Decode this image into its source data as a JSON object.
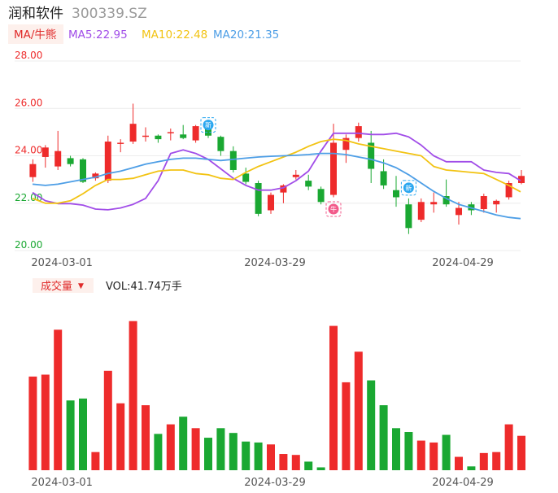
{
  "header": {
    "stock_name": "润和软件",
    "stock_code": "300339.SZ",
    "ma_tab_label": "MA/牛熊",
    "ma5_label": "MA5:22.95",
    "ma10_label": "MA10:22.48",
    "ma20_label": "MA20:21.35",
    "volume_tab_label": "成交量",
    "volume_tab_arrow": "▼",
    "volume_value_label": "VOL:41.74万手"
  },
  "colors": {
    "up": "#ee2b2b",
    "down": "#1aa832",
    "ma5": "#a14de8",
    "ma10": "#f2c313",
    "ma20": "#4d9ee6",
    "grid": "#ececec",
    "axis_text": "#555555",
    "title": "#222222",
    "code": "#9a9a9a",
    "tab_bg": "#fdf0ec",
    "tab_text": "#e02a2a",
    "badge_blue": "#2aa7f0",
    "badge_pink": "#f25a8a"
  },
  "chart_data": [
    {
      "type": "candlestick",
      "title": "润和软件 300339.SZ",
      "yticks": [
        "28.00",
        "26.00",
        "24.00",
        "22.00",
        "20.00"
      ],
      "ylim": [
        20,
        28
      ],
      "grid": true,
      "xtick_labels": [
        "2024-03-01",
        "2024-03-29",
        "2024-04-29"
      ],
      "xtick_indices": [
        2,
        19,
        34
      ],
      "candles": [
        {
          "o": 23.1,
          "c": 23.65,
          "h": 23.85,
          "l": 22.9
        },
        {
          "o": 23.95,
          "c": 24.35,
          "h": 24.45,
          "l": 23.5
        },
        {
          "o": 23.55,
          "c": 24.2,
          "h": 25.05,
          "l": 23.4
        },
        {
          "o": 23.9,
          "c": 23.65,
          "h": 24.0,
          "l": 23.55
        },
        {
          "o": 23.85,
          "c": 22.9,
          "h": 23.9,
          "l": 22.85
        },
        {
          "o": 23.05,
          "c": 23.25,
          "h": 23.3,
          "l": 22.95
        },
        {
          "o": 22.95,
          "c": 24.6,
          "h": 24.85,
          "l": 22.85
        },
        {
          "o": 24.5,
          "c": 24.55,
          "h": 24.7,
          "l": 24.15
        },
        {
          "o": 24.6,
          "c": 25.35,
          "h": 26.2,
          "l": 24.5
        },
        {
          "o": 24.8,
          "c": 24.85,
          "h": 25.2,
          "l": 24.6
        },
        {
          "o": 24.85,
          "c": 24.7,
          "h": 24.9,
          "l": 24.55
        },
        {
          "o": 24.95,
          "c": 25.0,
          "h": 25.15,
          "l": 24.65
        },
        {
          "o": 24.9,
          "c": 24.75,
          "h": 25.3,
          "l": 24.7
        },
        {
          "o": 24.65,
          "c": 25.25,
          "h": 25.3,
          "l": 24.55
        },
        {
          "o": 25.3,
          "c": 24.85,
          "h": 25.4,
          "l": 24.75
        },
        {
          "o": 24.8,
          "c": 24.2,
          "h": 24.85,
          "l": 24.0
        },
        {
          "o": 24.2,
          "c": 23.4,
          "h": 24.4,
          "l": 23.3
        },
        {
          "o": 23.25,
          "c": 22.9,
          "h": 23.5,
          "l": 22.8
        },
        {
          "o": 22.85,
          "c": 21.55,
          "h": 22.95,
          "l": 21.45
        },
        {
          "o": 21.7,
          "c": 22.35,
          "h": 22.45,
          "l": 21.55
        },
        {
          "o": 22.45,
          "c": 22.75,
          "h": 22.8,
          "l": 22.0
        },
        {
          "o": 23.1,
          "c": 23.2,
          "h": 23.4,
          "l": 23.0
        },
        {
          "o": 22.95,
          "c": 22.7,
          "h": 23.2,
          "l": 22.55
        },
        {
          "o": 22.6,
          "c": 22.05,
          "h": 22.7,
          "l": 21.95
        },
        {
          "o": 22.35,
          "c": 24.55,
          "h": 25.35,
          "l": 22.25
        },
        {
          "o": 24.25,
          "c": 24.75,
          "h": 24.9,
          "l": 23.7
        },
        {
          "o": 24.75,
          "c": 25.25,
          "h": 25.4,
          "l": 24.6
        },
        {
          "o": 24.55,
          "c": 23.45,
          "h": 25.05,
          "l": 22.85
        },
        {
          "o": 23.35,
          "c": 22.75,
          "h": 23.85,
          "l": 22.6
        },
        {
          "o": 22.55,
          "c": 22.25,
          "h": 23.15,
          "l": 21.85
        },
        {
          "o": 21.95,
          "c": 20.95,
          "h": 22.2,
          "l": 20.7
        },
        {
          "o": 21.3,
          "c": 22.05,
          "h": 22.2,
          "l": 21.2
        },
        {
          "o": 21.95,
          "c": 22.05,
          "h": 22.45,
          "l": 21.6
        },
        {
          "o": 22.3,
          "c": 21.95,
          "h": 23.0,
          "l": 21.85
        },
        {
          "o": 21.5,
          "c": 21.8,
          "h": 22.05,
          "l": 21.1
        },
        {
          "o": 21.95,
          "c": 21.7,
          "h": 22.05,
          "l": 21.5
        },
        {
          "o": 21.75,
          "c": 22.3,
          "h": 22.4,
          "l": 21.6
        },
        {
          "o": 21.95,
          "c": 22.1,
          "h": 22.15,
          "l": 21.6
        },
        {
          "o": 22.25,
          "c": 22.85,
          "h": 22.95,
          "l": 22.15
        },
        {
          "o": 22.85,
          "c": 23.15,
          "h": 23.4,
          "l": 22.8
        }
      ],
      "series": [
        {
          "name": "MA5",
          "values": [
            22.45,
            22.1,
            21.98,
            21.98,
            21.92,
            21.75,
            21.72,
            21.8,
            21.95,
            22.2,
            22.95,
            24.1,
            24.25,
            24.1,
            23.85,
            23.45,
            23.05,
            22.75,
            22.55,
            22.55,
            22.65,
            22.95,
            23.35,
            24.2,
            24.95,
            24.95,
            24.95,
            24.9,
            24.9,
            24.95,
            24.8,
            24.45,
            24.0,
            23.75,
            23.75,
            23.75,
            23.4,
            23.3,
            23.25,
            22.95
          ]
        },
        {
          "name": "MA10",
          "values": [
            22.2,
            22.0,
            22.0,
            22.1,
            22.4,
            22.75,
            23.0,
            23.0,
            23.05,
            23.2,
            23.35,
            23.4,
            23.4,
            23.25,
            23.2,
            23.05,
            23.0,
            23.3,
            23.55,
            23.75,
            23.95,
            24.15,
            24.4,
            24.6,
            24.7,
            24.65,
            24.5,
            24.4,
            24.3,
            24.2,
            24.1,
            24.0,
            23.55,
            23.4,
            23.35,
            23.3,
            23.25,
            23.0,
            22.75,
            22.48
          ]
        },
        {
          "name": "MA20",
          "values": [
            22.8,
            22.75,
            22.8,
            22.9,
            23.0,
            23.1,
            23.25,
            23.35,
            23.5,
            23.65,
            23.75,
            23.85,
            23.9,
            23.9,
            23.85,
            23.8,
            23.85,
            23.9,
            23.95,
            23.98,
            24.0,
            24.02,
            24.05,
            24.1,
            24.1,
            24.05,
            23.95,
            23.85,
            23.7,
            23.5,
            23.2,
            22.85,
            22.5,
            22.2,
            21.95,
            21.8,
            21.65,
            21.5,
            21.4,
            21.35
          ]
        }
      ],
      "annotations": [
        {
          "type": "badge",
          "label": "新",
          "index": 14,
          "price": 25.3,
          "color": "blue"
        },
        {
          "type": "badge",
          "label": "牛",
          "index": 24,
          "price": 21.75,
          "color": "pink"
        },
        {
          "type": "badge",
          "label": "新",
          "index": 30,
          "price": 22.65,
          "color": "blue"
        }
      ]
    },
    {
      "type": "bar",
      "title": "成交量",
      "xtick_labels": [
        "2024-03-01",
        "2024-03-29",
        "2024-04-29"
      ],
      "values": [
        98,
        100,
        147,
        73,
        75,
        19,
        104,
        70,
        156,
        68,
        38,
        48,
        56,
        44,
        34,
        44,
        39,
        30,
        29,
        27,
        17,
        16,
        9,
        3,
        151,
        92,
        124,
        94,
        68,
        44,
        40,
        31,
        29,
        37,
        14,
        4,
        18,
        19,
        48,
        36
      ]
    }
  ]
}
